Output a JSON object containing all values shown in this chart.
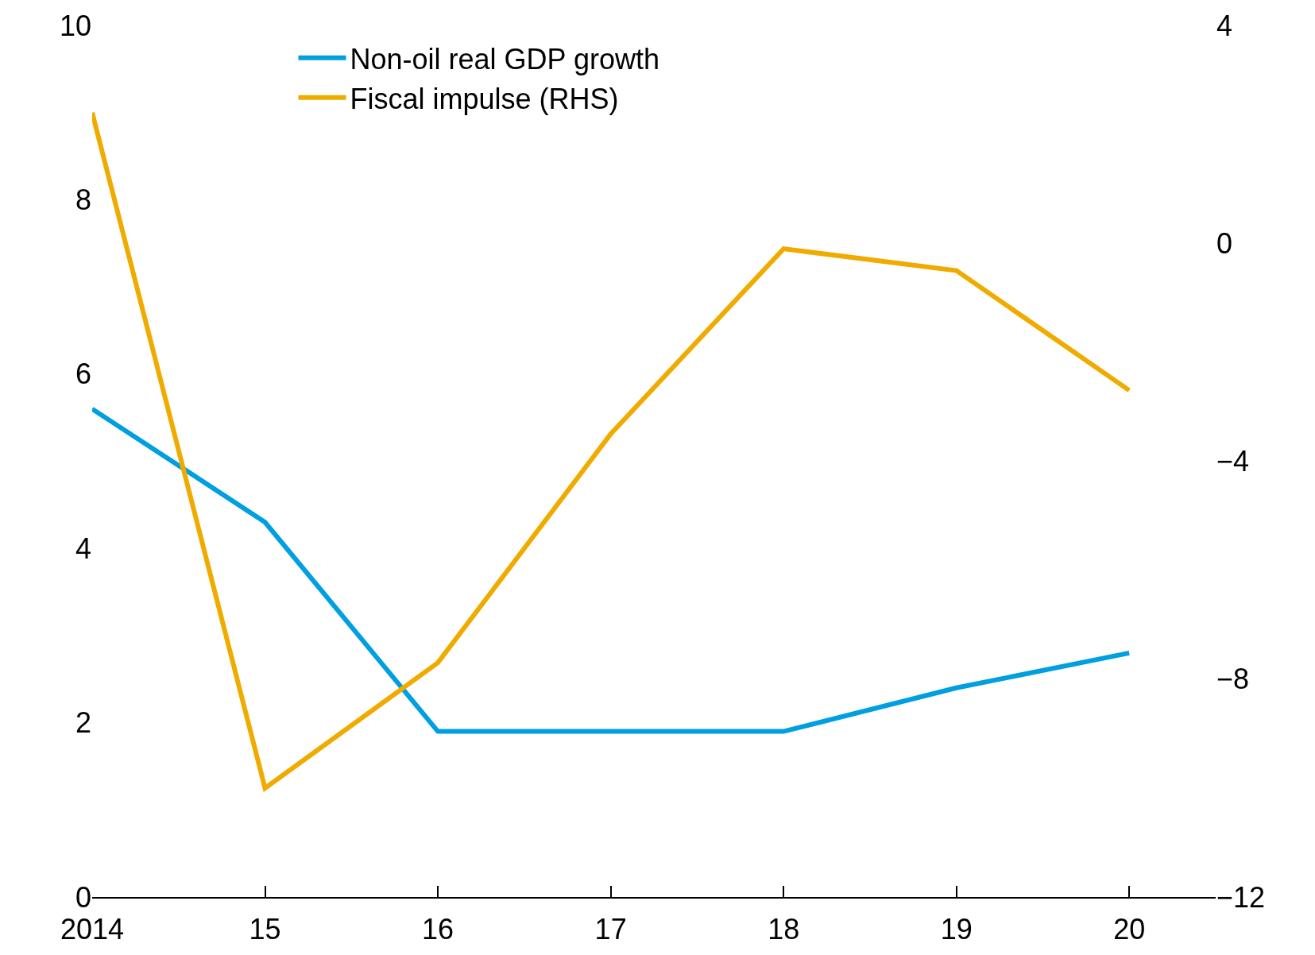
{
  "chart_data": {
    "type": "line",
    "x": [
      2014,
      2015,
      2016,
      2017,
      2018,
      2019,
      2020
    ],
    "series": [
      {
        "name": "Non-oil real GDP growth",
        "color": "#009fdf",
        "values": [
          5.6,
          4.3,
          1.9,
          1.9,
          1.9,
          2.4,
          2.8
        ]
      },
      {
        "name": "Fiscal impulse (RHS)",
        "color": "#f0ab00",
        "axis": "y2",
        "values": [
          2.4,
          -10.0,
          -7.7,
          -3.5,
          -0.1,
          -0.5,
          -2.7
        ]
      }
    ],
    "xlim": [
      2014,
      2020.5
    ],
    "xticks": [
      2014,
      {
        "value": 2015,
        "label": "15"
      },
      {
        "value": 2016,
        "label": "16"
      },
      {
        "value": 2017,
        "label": "17"
      },
      {
        "value": 2018,
        "label": "18"
      },
      {
        "value": 2019,
        "label": "19"
      },
      {
        "value": 2020,
        "label": "20"
      }
    ],
    "ylim": [
      0,
      10
    ],
    "yticks": [
      0,
      2,
      4,
      6,
      8,
      10
    ],
    "y2lim": [
      -12,
      4
    ],
    "y2ticks": [
      {
        "value": -12,
        "label": "−12"
      },
      {
        "value": -8,
        "label": "−8"
      },
      {
        "value": -4,
        "label": "−4"
      },
      0,
      4
    ],
    "legend": "top left",
    "marker": "none",
    "line_style": "solid"
  }
}
